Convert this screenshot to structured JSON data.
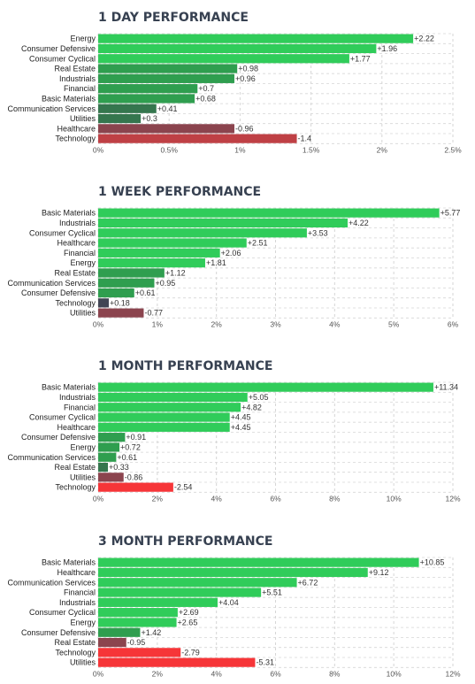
{
  "chart_data": [
    {
      "type": "bar",
      "orientation": "horizontal",
      "title": "1 DAY PERFORMANCE",
      "categories": [
        "Energy",
        "Consumer Defensive",
        "Consumer Cyclical",
        "Real Estate",
        "Industrials",
        "Financial",
        "Basic Materials",
        "Communication Services",
        "Utilities",
        "Healthcare",
        "Technology"
      ],
      "values": [
        2.22,
        1.96,
        1.77,
        0.98,
        0.96,
        0.7,
        0.68,
        0.41,
        0.3,
        -0.96,
        -1.4
      ],
      "value_labels": [
        "+2.22",
        "+1.96",
        "+1.77",
        "+0.98",
        "+0.96",
        "+0.7",
        "+0.68",
        "+0.41",
        "+0.3",
        "-0.96",
        "-1.4"
      ],
      "x_ticks": [
        "0%",
        "0.5%",
        "1%",
        "1.5%",
        "2%",
        "2.5%"
      ],
      "xlim": [
        0,
        2.5
      ],
      "grid": true
    },
    {
      "type": "bar",
      "orientation": "horizontal",
      "title": "1 WEEK PERFORMANCE",
      "categories": [
        "Basic Materials",
        "Industrials",
        "Consumer Cyclical",
        "Healthcare",
        "Financial",
        "Energy",
        "Real Estate",
        "Communication Services",
        "Consumer Defensive",
        "Technology",
        "Utilities"
      ],
      "values": [
        5.77,
        4.22,
        3.53,
        2.51,
        2.06,
        1.81,
        1.12,
        0.95,
        0.61,
        0.18,
        -0.77
      ],
      "value_labels": [
        "+5.77",
        "+4.22",
        "+3.53",
        "+2.51",
        "+2.06",
        "+1.81",
        "+1.12",
        "+0.95",
        "+0.61",
        "+0.18",
        "-0.77"
      ],
      "x_ticks": [
        "0%",
        "1%",
        "2%",
        "3%",
        "4%",
        "5%",
        "6%"
      ],
      "xlim": [
        0,
        6
      ],
      "grid": true
    },
    {
      "type": "bar",
      "orientation": "horizontal",
      "title": "1 MONTH PERFORMANCE",
      "categories": [
        "Basic Materials",
        "Industrials",
        "Financial",
        "Consumer Cyclical",
        "Healthcare",
        "Consumer Defensive",
        "Energy",
        "Communication Services",
        "Real Estate",
        "Utilities",
        "Technology"
      ],
      "values": [
        11.34,
        5.05,
        4.82,
        4.45,
        4.45,
        0.91,
        0.72,
        0.61,
        0.33,
        -0.86,
        -2.54
      ],
      "value_labels": [
        "+11.34",
        "+5.05",
        "+4.82",
        "+4.45",
        "+4.45",
        "+0.91",
        "+0.72",
        "+0.61",
        "+0.33",
        "-0.86",
        "-2.54"
      ],
      "x_ticks": [
        "0%",
        "2%",
        "4%",
        "6%",
        "8%",
        "10%",
        "12%"
      ],
      "xlim": [
        0,
        12
      ],
      "grid": true
    },
    {
      "type": "bar",
      "orientation": "horizontal",
      "title": "3 MONTH PERFORMANCE",
      "categories": [
        "Basic Materials",
        "Healthcare",
        "Communication Services",
        "Financial",
        "Industrials",
        "Consumer Cyclical",
        "Energy",
        "Consumer Defensive",
        "Real Estate",
        "Technology",
        "Utilities"
      ],
      "values": [
        10.85,
        9.12,
        6.72,
        5.51,
        4.04,
        2.69,
        2.65,
        1.42,
        -0.95,
        -2.79,
        -5.31
      ],
      "value_labels": [
        "+10.85",
        "+9.12",
        "+6.72",
        "+5.51",
        "+4.04",
        "+2.69",
        "+2.65",
        "+1.42",
        "-0.95",
        "-2.79",
        "-5.31"
      ],
      "x_ticks": [
        "0%",
        "2%",
        "4%",
        "6%",
        "8%",
        "10%",
        "12%"
      ],
      "xlim": [
        0,
        12
      ],
      "grid": true
    }
  ],
  "colors": {
    "positive_strong": "#30cc5a",
    "positive_mid": "#2f9e4f",
    "positive_weak": "#35764e",
    "neutral": "#414554",
    "negative_weak": "#8b444e",
    "negative_mid": "#bf4045",
    "negative_strong": "#f63538",
    "grid": "#d6d6d6",
    "title": "#374151"
  }
}
